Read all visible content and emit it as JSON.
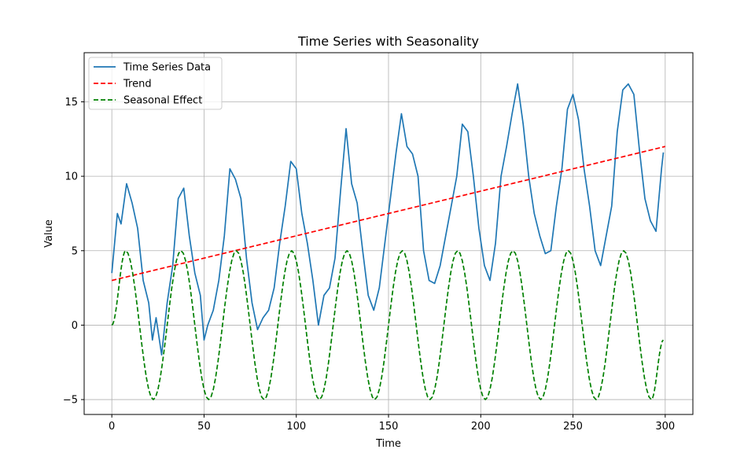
{
  "chart_data": {
    "type": "line",
    "title": "Time Series with Seasonality",
    "xlabel": "Time",
    "ylabel": "Value",
    "xlim": [
      -15,
      315
    ],
    "ylim": [
      -6.0,
      18.3
    ],
    "xticks": [
      0,
      50,
      100,
      150,
      200,
      250,
      300
    ],
    "yticks": [
      -5,
      0,
      5,
      10,
      15
    ],
    "xtick_labels": [
      "0",
      "50",
      "100",
      "150",
      "200",
      "250",
      "300"
    ],
    "ytick_labels": [
      "−5",
      "0",
      "5",
      "10",
      "15"
    ],
    "grid": true,
    "legend_position": "top-left",
    "series": [
      {
        "name": "Time Series Data",
        "color": "#1f77b4",
        "style": "solid",
        "x": [
          0,
          3,
          5,
          8,
          11,
          14,
          17,
          20,
          22,
          24,
          27,
          30,
          33,
          36,
          39,
          42,
          45,
          48,
          50,
          52,
          55,
          58,
          61,
          64,
          67,
          70,
          73,
          76,
          79,
          82,
          85,
          88,
          91,
          94,
          97,
          100,
          103,
          106,
          109,
          112,
          115,
          118,
          121,
          124,
          127,
          130,
          133,
          136,
          139,
          142,
          145,
          148,
          151,
          154,
          157,
          160,
          163,
          166,
          169,
          172,
          175,
          178,
          181,
          184,
          187,
          190,
          193,
          196,
          199,
          202,
          205,
          208,
          211,
          214,
          217,
          220,
          223,
          226,
          229,
          232,
          235,
          238,
          241,
          244,
          247,
          250,
          253,
          256,
          259,
          262,
          265,
          268,
          271,
          274,
          277,
          280,
          283,
          286,
          289,
          292,
          295,
          298,
          299
        ],
        "values": [
          3.5,
          7.5,
          6.8,
          9.5,
          8.2,
          6.5,
          3.0,
          1.5,
          -1.0,
          0.5,
          -2.0,
          1.5,
          4.0,
          8.5,
          9.2,
          6.0,
          3.5,
          2.0,
          -1.0,
          0.0,
          1.0,
          3.0,
          6.0,
          10.5,
          9.8,
          8.5,
          4.5,
          1.5,
          -0.3,
          0.5,
          1.0,
          2.5,
          5.5,
          8.0,
          11.0,
          10.5,
          7.5,
          5.5,
          3.0,
          0.0,
          2.0,
          2.5,
          4.5,
          9.0,
          13.2,
          9.5,
          8.2,
          5.0,
          2.0,
          1.0,
          2.5,
          5.5,
          8.5,
          11.5,
          14.2,
          12.0,
          11.5,
          10.0,
          5.0,
          3.0,
          2.8,
          4.0,
          6.0,
          8.0,
          10.0,
          13.5,
          13.0,
          10.0,
          6.5,
          4.0,
          3.0,
          5.5,
          10.0,
          12.0,
          14.2,
          16.2,
          13.5,
          10.0,
          7.5,
          6.0,
          4.8,
          5.0,
          8.0,
          10.5,
          14.5,
          15.5,
          13.8,
          10.5,
          8.0,
          5.0,
          4.0,
          6.0,
          8.0,
          13.0,
          15.8,
          16.2,
          15.5,
          11.8,
          8.5,
          7.0,
          6.3,
          10.5,
          11.6
        ]
      },
      {
        "name": "Trend",
        "color": "#ff0000",
        "style": "dashed",
        "x": [
          0,
          300
        ],
        "values": [
          3.0,
          12.0
        ]
      },
      {
        "name": "Seasonal Effect",
        "color": "#008000",
        "style": "dashed",
        "x": [
          0,
          7.5,
          22.5,
          37.5,
          52.5,
          67.5,
          82.5,
          97.5,
          112.5,
          127.5,
          142.5,
          157.5,
          172.5,
          187.5,
          202.5,
          217.5,
          232.5,
          247.5,
          262.5,
          277.5,
          292.5,
          299
        ],
        "values": [
          0,
          5,
          -5,
          5,
          -5,
          5,
          -5,
          5,
          -5,
          5,
          -5,
          5,
          -5,
          5,
          -5,
          5,
          -5,
          5,
          -5,
          5,
          -5,
          -1.0
        ]
      }
    ]
  }
}
